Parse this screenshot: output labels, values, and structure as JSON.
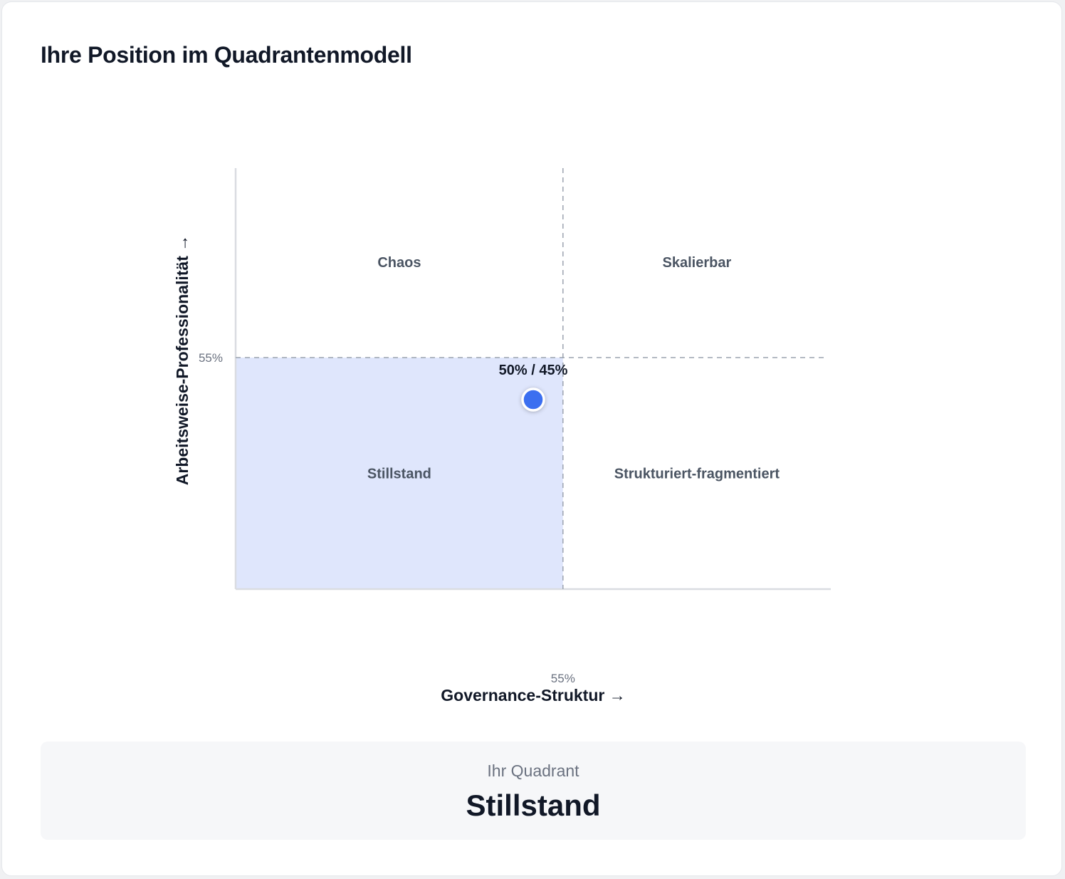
{
  "card": {
    "title": "Ihre Position im Quadrantenmodell"
  },
  "chart_data": {
    "type": "scatter",
    "title": "",
    "xlabel": "Governance-Struktur →",
    "ylabel": "Arbeitsweise-Professionalität →",
    "xlim": [
      0,
      100
    ],
    "ylim": [
      0,
      100
    ],
    "x_threshold": 55,
    "y_threshold": 55,
    "x_threshold_label": "55%",
    "y_threshold_label": "55%",
    "grid": false,
    "quadrants": [
      {
        "name": "Chaos",
        "position": "top-left"
      },
      {
        "name": "Skalierbar",
        "position": "top-right"
      },
      {
        "name": "Stillstand",
        "position": "bottom-left",
        "highlighted": true
      },
      {
        "name": "Strukturiert-fragmentiert",
        "position": "bottom-right"
      }
    ],
    "points": [
      {
        "x": 50,
        "y": 45,
        "label": "50% / 45%"
      }
    ],
    "colors": {
      "point": "#3b6ff0",
      "highlight": "#dfe6fc",
      "axis": "#d9dce1",
      "threshold": "#9ca3af"
    }
  },
  "result": {
    "caption": "Ihr Quadrant",
    "value": "Stillstand"
  }
}
